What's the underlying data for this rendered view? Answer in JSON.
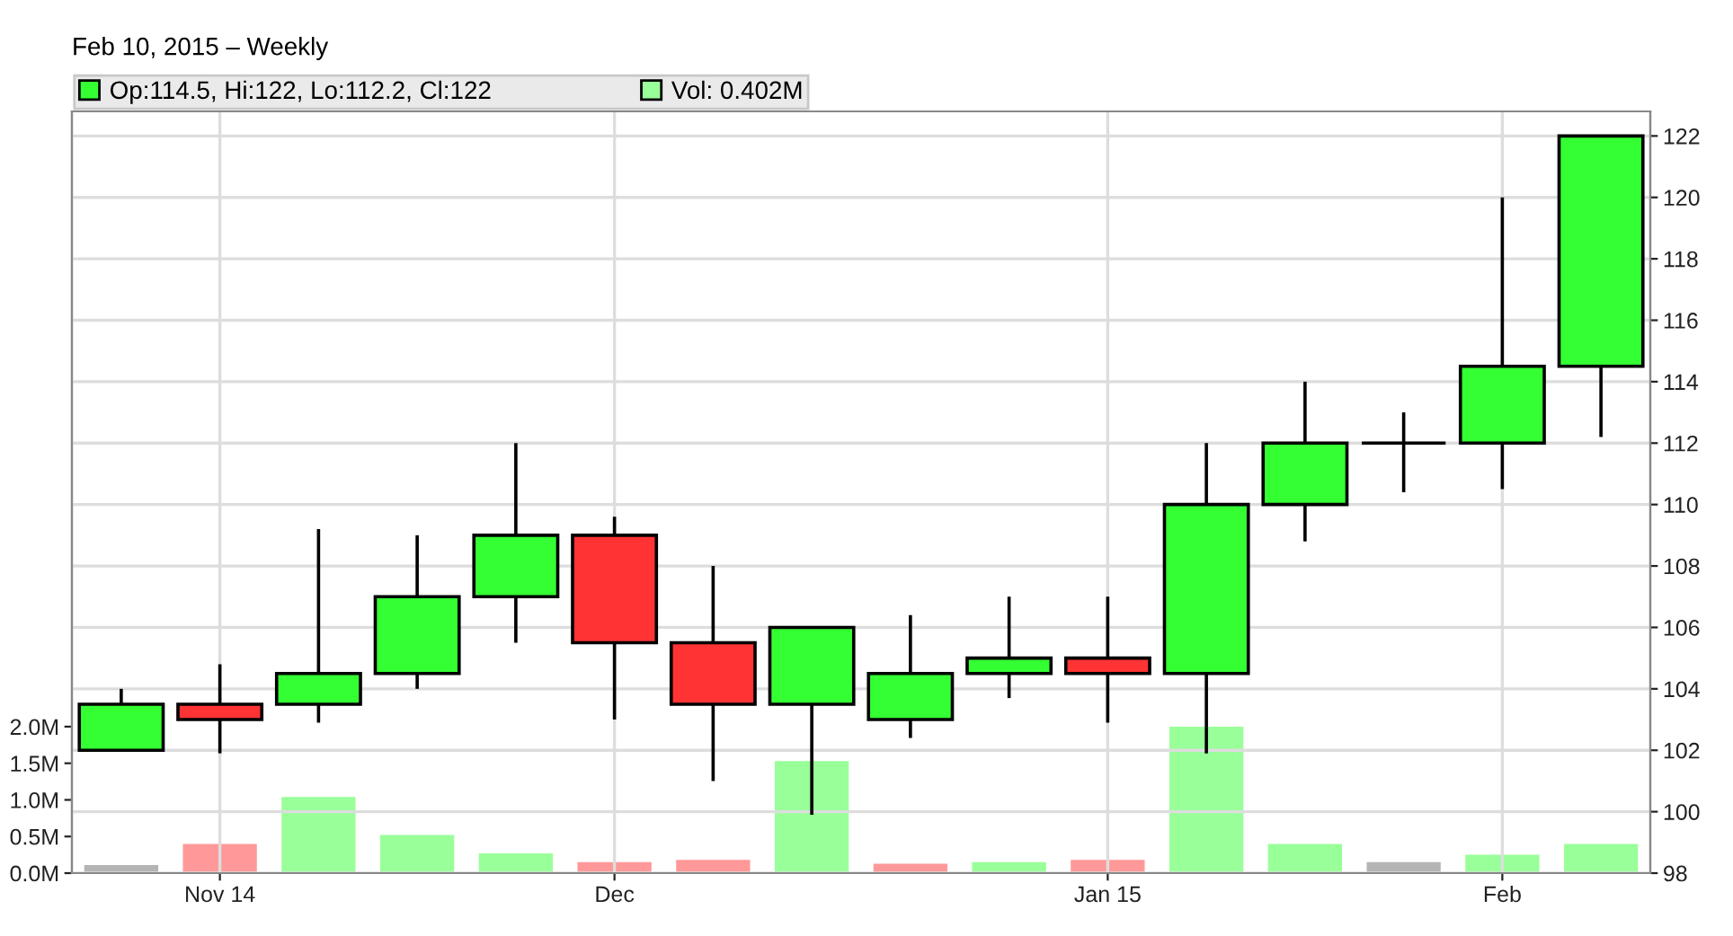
{
  "chart_data": {
    "type": "candlestick",
    "subtitle": "Feb 10, 2015 – Weekly",
    "categories": [
      null,
      "Nov 14",
      null,
      null,
      null,
      "Dec",
      null,
      null,
      null,
      null,
      "Jan 15",
      null,
      null,
      null,
      "Feb",
      null
    ],
    "series": [
      {
        "type": "candlestick",
        "name": "Op:114.5, Hi:122, Lo:112.2, Cl:122",
        "color": "#33ff33",
        "ohlc": [
          [
            102,
            104,
            102,
            103.5
          ],
          [
            103.5,
            104.8,
            101.9,
            103
          ],
          [
            103.5,
            109.2,
            102.9,
            104.5
          ],
          [
            104.5,
            109,
            104,
            107
          ],
          [
            107,
            112,
            105.5,
            109
          ],
          [
            109,
            109.6,
            103,
            105.5
          ],
          [
            105.5,
            108,
            101,
            103.5
          ],
          [
            103.5,
            106,
            99.9,
            106
          ],
          [
            103,
            106.4,
            102.4,
            104.5
          ],
          [
            104.5,
            107,
            103.7,
            105
          ],
          [
            105,
            107,
            102.9,
            104.5
          ],
          [
            104.5,
            112,
            101.9,
            110
          ],
          [
            110,
            114,
            108.8,
            112
          ],
          [
            112,
            113,
            110.4,
            112
          ],
          [
            112,
            120,
            110.5,
            114.5
          ],
          [
            114.5,
            122,
            112.2,
            122
          ]
        ],
        "colors": [
          "#33ff33",
          "#ff3333",
          "#33ff33",
          "#33ff33",
          "#33ff33",
          "#ff3333",
          "#ff3333",
          "#33ff33",
          "#33ff33",
          "#33ff33",
          "#ff3333",
          "#33ff33",
          "#33ff33",
          "#000000",
          "#33ff33",
          "#33ff33"
        ]
      },
      {
        "type": "bar",
        "name": "Vol: 0.402M",
        "axis": "y2",
        "color": "#99ff99",
        "values": [
          0.11,
          0.4,
          1.04,
          0.52,
          0.27,
          0.15,
          0.18,
          1.53,
          0.13,
          0.15,
          0.18,
          2.0,
          0.4,
          0.15,
          0.25,
          0.4
        ],
        "colors": [
          "#b4b4b4",
          "#ff9999",
          "#99ff99",
          "#99ff99",
          "#99ff99",
          "#ff9999",
          "#ff9999",
          "#99ff99",
          "#ff9999",
          "#99ff99",
          "#ff9999",
          "#99ff99",
          "#99ff99",
          "#b4b4b4",
          "#99ff99",
          "#99ff99"
        ]
      }
    ],
    "ylim": [
      98,
      122.8
    ],
    "yticks": [
      98,
      100,
      102,
      104,
      106,
      108,
      110,
      112,
      114,
      116,
      118,
      120,
      122
    ],
    "y2lim": [
      0,
      10.4
    ],
    "y2ticks": [
      {
        "value": 0,
        "label": "0.0M"
      },
      {
        "value": 0.5,
        "label": "0.5M"
      },
      {
        "value": 1.0,
        "label": "1.0M"
      },
      {
        "value": 1.5,
        "label": "1.5M"
      },
      {
        "value": 2.0,
        "label": "2.0M"
      }
    ],
    "grid": true,
    "legend": "top"
  }
}
